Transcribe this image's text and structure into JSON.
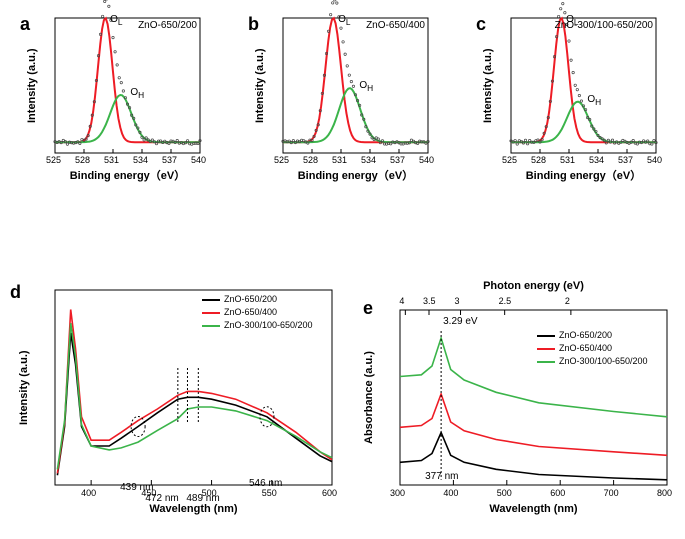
{
  "panel_letters": [
    "a",
    "b",
    "c",
    "d",
    "e"
  ],
  "topRow": {
    "titles": [
      "ZnO-650/200",
      "ZnO-650/400",
      "ZnO-300/100-650/200"
    ],
    "xTicks": [
      525,
      528,
      531,
      534,
      537,
      540
    ],
    "xlim": [
      525,
      540
    ],
    "ylim": [
      0,
      100
    ],
    "xlabel": "Binding energy（eV）",
    "ylabel": "Intensity (a.u.)",
    "annot_OL": "O",
    "annot_OL_sub": "L",
    "annot_OH": "O",
    "annot_OH_sub": "H",
    "colors": {
      "red": "#ee1c25",
      "green": "#3bb44a",
      "scatter": "#444444"
    },
    "data": [
      {
        "peak_center": 530.2,
        "peak_height": 92,
        "peak_sigma": 0.75,
        "green_center": 531.8,
        "green_height": 35,
        "green_sigma": 1.1
      },
      {
        "peak_center": 530.2,
        "peak_height": 92,
        "peak_sigma": 0.8,
        "green_center": 531.9,
        "green_height": 40,
        "green_sigma": 1.1
      },
      {
        "peak_center": 530.2,
        "peak_height": 92,
        "peak_sigma": 0.75,
        "green_center": 531.9,
        "green_height": 30,
        "green_sigma": 1.1
      }
    ]
  },
  "panelD": {
    "xlabel": "Wavelength (nm)",
    "ylabel": "Intensity (a.u.)",
    "xTicks": [
      400,
      450,
      500,
      550,
      600
    ],
    "xlim": [
      370,
      600
    ],
    "ylim": [
      0,
      100
    ],
    "colors": {
      "black": "#000000",
      "red": "#ee1c25",
      "green": "#3bb44a"
    },
    "legend": [
      {
        "color": "#000000",
        "label": "ZnO-650/200"
      },
      {
        "color": "#ee1c25",
        "label": "ZnO-650/400"
      },
      {
        "color": "#3bb44a",
        "label": "ZnO-300/100-650/200"
      }
    ],
    "annotations": [
      "439 nm",
      "472 nm",
      "489 nm",
      "546 nm"
    ],
    "series": {
      "black": [
        [
          372,
          5
        ],
        [
          378,
          30
        ],
        [
          383,
          78
        ],
        [
          387,
          62
        ],
        [
          392,
          30
        ],
        [
          400,
          20
        ],
        [
          415,
          20
        ],
        [
          425,
          24
        ],
        [
          439,
          30
        ],
        [
          455,
          37
        ],
        [
          472,
          44
        ],
        [
          480,
          45
        ],
        [
          489,
          45
        ],
        [
          500,
          44
        ],
        [
          520,
          41
        ],
        [
          546,
          35
        ],
        [
          570,
          24
        ],
        [
          590,
          15
        ],
        [
          600,
          12
        ]
      ],
      "red": [
        [
          372,
          6
        ],
        [
          378,
          32
        ],
        [
          383,
          90
        ],
        [
          387,
          70
        ],
        [
          392,
          35
        ],
        [
          400,
          23
        ],
        [
          415,
          23
        ],
        [
          425,
          27
        ],
        [
          439,
          33
        ],
        [
          455,
          39
        ],
        [
          472,
          46
        ],
        [
          480,
          48
        ],
        [
          489,
          48
        ],
        [
          500,
          47
        ],
        [
          520,
          44
        ],
        [
          546,
          37
        ],
        [
          570,
          27
        ],
        [
          590,
          17
        ],
        [
          600,
          13
        ]
      ],
      "green": [
        [
          372,
          8
        ],
        [
          378,
          33
        ],
        [
          383,
          83
        ],
        [
          387,
          66
        ],
        [
          392,
          31
        ],
        [
          400,
          20
        ],
        [
          415,
          18
        ],
        [
          425,
          19
        ],
        [
          439,
          22
        ],
        [
          455,
          28
        ],
        [
          472,
          34
        ],
        [
          480,
          39
        ],
        [
          489,
          40
        ],
        [
          500,
          40
        ],
        [
          520,
          38
        ],
        [
          546,
          33
        ],
        [
          570,
          25
        ],
        [
          590,
          17
        ],
        [
          600,
          14
        ]
      ]
    },
    "dashed_x": [
      472,
      480,
      489
    ]
  },
  "panelE": {
    "xlabel": "Wavelength (nm)",
    "ylabel": "Absorbance (a.u.)",
    "toplabel": "Photon energy (eV)",
    "xTicks": [
      300,
      400,
      500,
      600,
      700,
      800
    ],
    "xlim": [
      300,
      800
    ],
    "ylim": [
      0,
      100
    ],
    "topTicks": [
      4,
      3.5,
      3,
      2.5,
      2
    ],
    "colors": {
      "black": "#000000",
      "red": "#ee1c25",
      "green": "#3bb44a"
    },
    "legend": [
      {
        "color": "#000000",
        "label": "ZnO-650/200"
      },
      {
        "color": "#ee1c25",
        "label": "ZnO-650/400"
      },
      {
        "color": "#3bb44a",
        "label": "ZnO-300/100-650/200"
      }
    ],
    "annot_top": "3.29 eV",
    "annot_bottom": "377 nm",
    "peak_x": 377,
    "series": {
      "black": [
        [
          300,
          13
        ],
        [
          340,
          14
        ],
        [
          360,
          18
        ],
        [
          377,
          30
        ],
        [
          395,
          17
        ],
        [
          420,
          13
        ],
        [
          480,
          9
        ],
        [
          560,
          6
        ],
        [
          700,
          4
        ],
        [
          800,
          3
        ]
      ],
      "red": [
        [
          300,
          33
        ],
        [
          340,
          34
        ],
        [
          360,
          38
        ],
        [
          377,
          52
        ],
        [
          395,
          36
        ],
        [
          420,
          31
        ],
        [
          480,
          26
        ],
        [
          560,
          22
        ],
        [
          700,
          19
        ],
        [
          800,
          17
        ]
      ],
      "green": [
        [
          300,
          62
        ],
        [
          340,
          63
        ],
        [
          360,
          68
        ],
        [
          377,
          84
        ],
        [
          395,
          66
        ],
        [
          420,
          60
        ],
        [
          480,
          53
        ],
        [
          560,
          47
        ],
        [
          700,
          42
        ],
        [
          800,
          39
        ]
      ]
    }
  }
}
